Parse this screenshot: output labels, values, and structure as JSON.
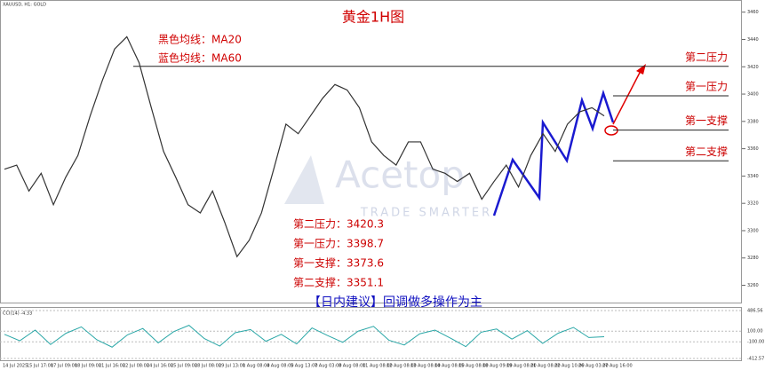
{
  "chart_data": {
    "type": "line",
    "symbol": "XAUUSD, H1: GOLD",
    "title": "黄金1H图",
    "legend_notes": [
      "黑色均线：MA20",
      "蓝色均线：MA60"
    ],
    "watermark": [
      "Acetop",
      "TRADE SMARTER"
    ],
    "advice": "【日内建议】回调做多操作为主",
    "series": [
      {
        "name": "XAUUSD H1",
        "color": "#333333",
        "values": [
          3345,
          3348,
          3329,
          3342,
          3319,
          3339,
          3355,
          3384,
          3410,
          3433,
          3442,
          3423,
          3390,
          3358,
          3339,
          3319,
          3313,
          3329,
          3306,
          3281,
          3293,
          3313,
          3345,
          3378,
          3371,
          3384,
          3397,
          3407,
          3403,
          3390,
          3365,
          3355,
          3348,
          3365,
          3365,
          3345,
          3342,
          3336,
          3342,
          3323,
          3336,
          3348,
          3332,
          3355,
          3371,
          3358,
          3378,
          3387,
          3390,
          3384
        ]
      }
    ],
    "ylim": [
      3248,
      3465
    ],
    "yticks": [
      3260,
      3280,
      3300,
      3320,
      3340,
      3360,
      3380,
      3400,
      3420,
      3440,
      3460
    ],
    "x_labels": [
      "14 Jul 2025",
      "15 Jul 17:00",
      "17 Jul 09:00",
      "18 Jul 09:00",
      "21 Jul 16:00",
      "22 Jul 08:00",
      "24 Jul 16:00",
      "25 Jul 09:00",
      "28 Jul 08:00",
      "29 Jul 13:00",
      "1 Aug 08:00",
      "4 Aug 08:00",
      "5 Aug 13:00",
      "7 Aug 03:00",
      "8 Aug 08:00",
      "11 Aug 08:00",
      "12 Aug 08:00",
      "13 Aug 08:00",
      "14 Aug 08:00",
      "15 Aug 08:00",
      "18 Aug 09:00",
      "19 Aug 08:00",
      "21 Aug 08:00",
      "22 Aug 10:00",
      "26 Aug 03:00",
      "27 Aug 16:00"
    ],
    "levels": [
      {
        "name": "第二压力",
        "value": 3420.3,
        "label": "第二压力：3420.3",
        "color": "#cc0000"
      },
      {
        "name": "第一压力",
        "value": 3398.7,
        "label": "第一压力：3398.7",
        "color": "#cc0000"
      },
      {
        "name": "第一支撑",
        "value": 3373.6,
        "label": "第一支撑：3373.6",
        "color": "#cc0000"
      },
      {
        "name": "第二支撑",
        "value": 3351.1,
        "label": "第二支撑：3351.1",
        "color": "#cc0000"
      }
    ],
    "cci": {
      "title": "CCI(14) -4.33",
      "color": "#2aa7a7",
      "values": [
        40,
        -80,
        120,
        -150,
        60,
        180,
        -60,
        -200,
        30,
        150,
        -120,
        90,
        210,
        -40,
        -180,
        70,
        130,
        -90,
        40,
        -140,
        160,
        20,
        -110,
        100,
        190,
        -70,
        -160,
        50,
        120,
        -30,
        -190,
        80,
        140,
        -50,
        110,
        -130,
        60,
        170,
        -20,
        -4.33
      ],
      "ylim": [
        -412.57,
        486.56
      ],
      "yticks": [
        {
          "value": 486.56,
          "label": "486.56"
        },
        {
          "value": 100,
          "label": "100.00"
        },
        {
          "value": -100,
          "label": "-100.00"
        },
        {
          "value": -412.57,
          "label": "-412.57"
        }
      ]
    }
  }
}
